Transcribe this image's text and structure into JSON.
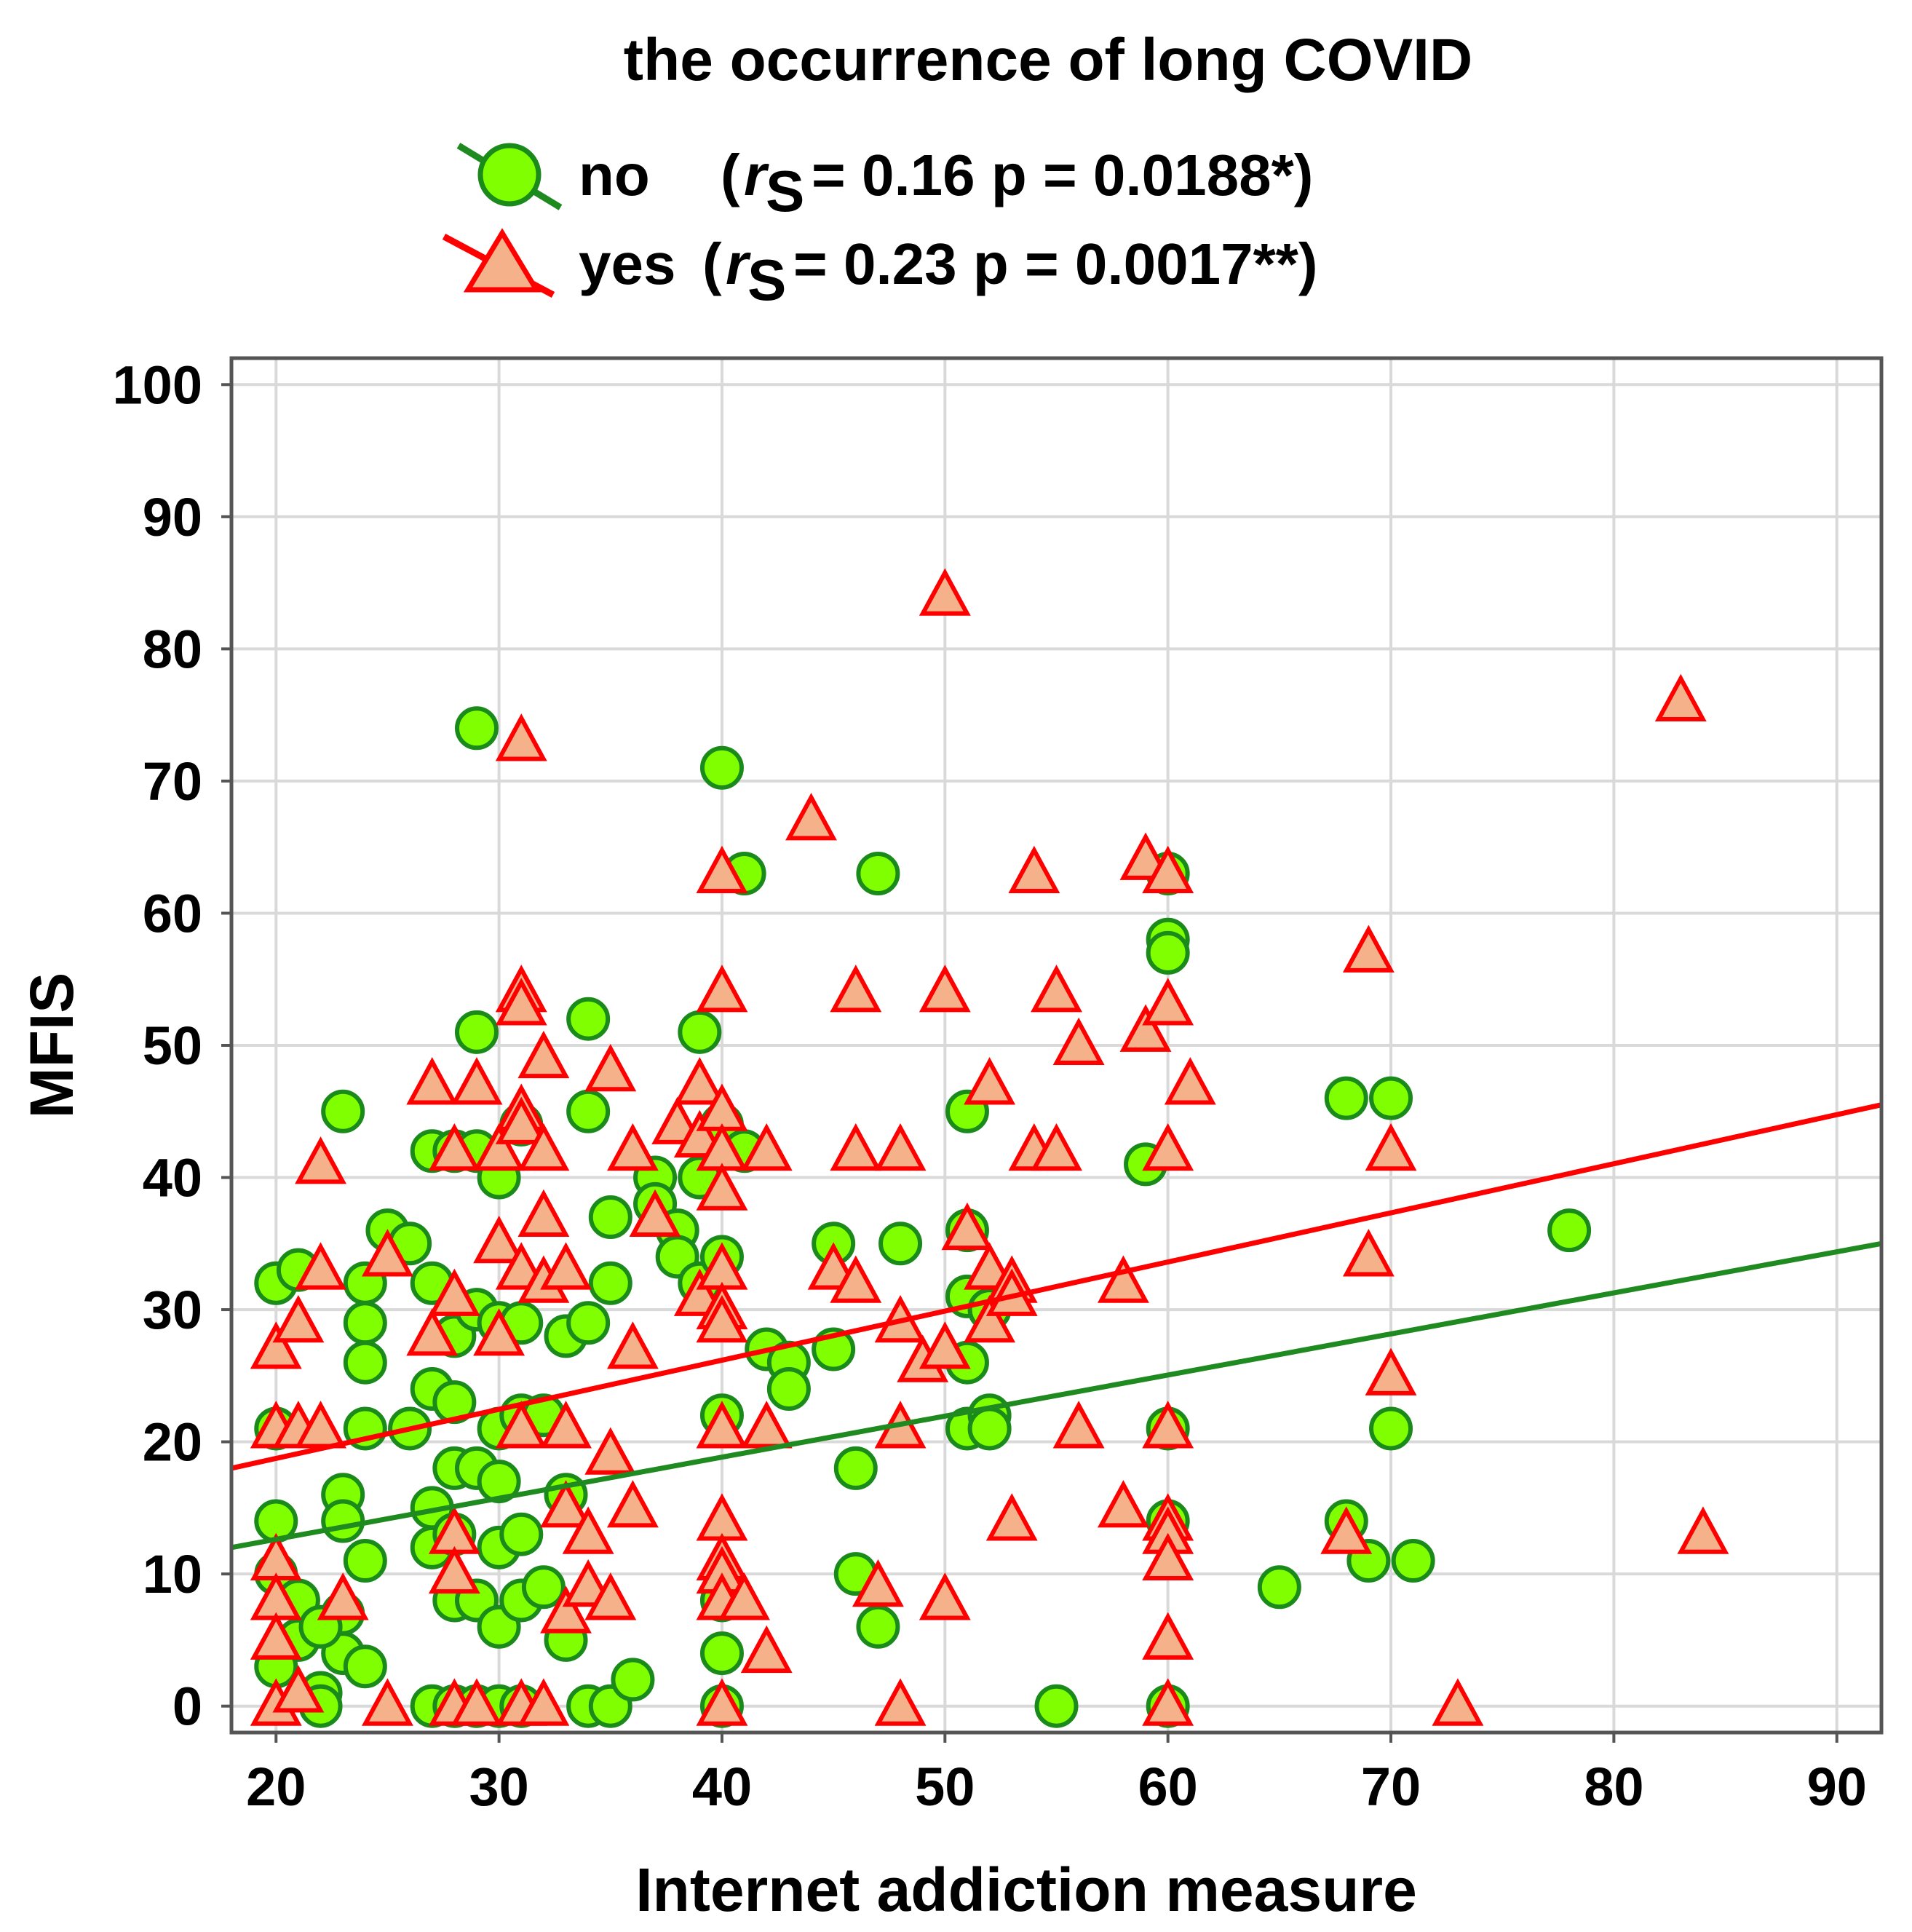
{
  "chart_data": {
    "type": "scatter",
    "title": "the occurrence of long COVID",
    "xlabel": "Internet addiction measure",
    "ylabel": "MFIS",
    "xlim": [
      18,
      92
    ],
    "ylim": [
      -2,
      102
    ],
    "xticks": [
      20,
      30,
      40,
      50,
      60,
      70,
      80,
      90
    ],
    "yticks": [
      0,
      10,
      20,
      30,
      40,
      50,
      60,
      70,
      80,
      90,
      100
    ],
    "grid": true,
    "legend_position": "top",
    "colors": {
      "no_fill": "#7fff00",
      "no_stroke": "#1a8a1a",
      "no_line": "#1f8a1f",
      "yes_fill": "#f4b18a",
      "yes_stroke": "#ff0000",
      "yes_line": "#ff0000",
      "grid": "#d9d9d9"
    },
    "legend": [
      {
        "key": "no",
        "label": "no",
        "stat": "= 0.16  p = 0.0188*)",
        "prefix": "(",
        "r": "r",
        "sub": "S"
      },
      {
        "key": "yes",
        "label": "yes",
        "stat": "= 0.23  p = 0.0017**)",
        "prefix": "(",
        "r": "r",
        "sub": "S"
      }
    ],
    "series": [
      {
        "name": "no",
        "marker": "circle",
        "rs": 0.16,
        "p": "0.0188*",
        "fit": {
          "x": [
            18,
            92
          ],
          "y": [
            12.0,
            35.0
          ]
        },
        "points": [
          [
            20,
            32
          ],
          [
            21,
            33
          ],
          [
            20,
            21
          ],
          [
            20,
            14
          ],
          [
            20,
            10
          ],
          [
            21,
            8
          ],
          [
            21,
            5
          ],
          [
            20,
            3
          ],
          [
            22,
            1
          ],
          [
            22,
            0
          ],
          [
            23,
            7
          ],
          [
            23,
            4
          ],
          [
            22,
            6
          ],
          [
            23,
            45
          ],
          [
            24,
            32
          ],
          [
            24,
            29
          ],
          [
            24,
            26
          ],
          [
            24,
            21
          ],
          [
            23,
            16
          ],
          [
            23,
            14
          ],
          [
            24,
            11
          ],
          [
            24,
            3
          ],
          [
            25,
            36
          ],
          [
            26,
            35
          ],
          [
            26,
            21
          ],
          [
            27,
            42
          ],
          [
            27,
            32
          ],
          [
            27,
            24
          ],
          [
            28,
            23
          ],
          [
            27,
            15
          ],
          [
            27,
            12
          ],
          [
            27,
            0
          ],
          [
            28,
            42
          ],
          [
            28,
            28
          ],
          [
            28,
            18
          ],
          [
            28,
            13
          ],
          [
            28,
            8
          ],
          [
            28,
            0
          ],
          [
            29,
            74
          ],
          [
            29,
            51
          ],
          [
            29,
            42
          ],
          [
            29,
            30
          ],
          [
            29,
            18
          ],
          [
            29,
            8
          ],
          [
            29,
            0
          ],
          [
            30,
            40
          ],
          [
            30,
            29
          ],
          [
            30,
            21
          ],
          [
            30,
            17
          ],
          [
            30,
            12
          ],
          [
            30,
            6
          ],
          [
            30,
            0
          ],
          [
            31,
            44
          ],
          [
            31,
            29
          ],
          [
            31,
            22
          ],
          [
            31,
            13
          ],
          [
            31,
            8
          ],
          [
            31,
            0
          ],
          [
            32,
            22
          ],
          [
            32,
            9
          ],
          [
            33,
            28
          ],
          [
            33,
            16
          ],
          [
            33,
            5
          ],
          [
            34,
            52
          ],
          [
            34,
            45
          ],
          [
            34,
            29
          ],
          [
            34,
            0
          ],
          [
            35,
            37
          ],
          [
            35,
            32
          ],
          [
            35,
            0
          ],
          [
            36,
            2
          ],
          [
            37,
            40
          ],
          [
            37,
            38
          ],
          [
            38,
            36
          ],
          [
            38,
            34
          ],
          [
            39,
            51
          ],
          [
            39,
            40
          ],
          [
            39,
            32
          ],
          [
            40,
            71
          ],
          [
            40,
            44
          ],
          [
            40,
            34
          ],
          [
            40,
            22
          ],
          [
            40,
            8
          ],
          [
            40,
            4
          ],
          [
            40,
            0
          ],
          [
            41,
            63
          ],
          [
            41,
            42
          ],
          [
            42,
            27
          ],
          [
            43,
            26
          ],
          [
            43,
            24
          ],
          [
            45,
            35
          ],
          [
            45,
            27
          ],
          [
            46,
            18
          ],
          [
            46,
            10
          ],
          [
            47,
            63
          ],
          [
            47,
            6
          ],
          [
            48,
            35
          ],
          [
            51,
            45
          ],
          [
            51,
            36
          ],
          [
            51,
            31
          ],
          [
            51,
            21
          ],
          [
            51,
            26
          ],
          [
            52,
            30
          ],
          [
            52,
            22
          ],
          [
            52,
            21
          ],
          [
            55,
            0
          ],
          [
            59,
            41
          ],
          [
            60,
            63
          ],
          [
            60,
            58
          ],
          [
            60,
            57
          ],
          [
            60,
            21
          ],
          [
            60,
            14
          ],
          [
            60,
            0
          ],
          [
            65,
            9
          ],
          [
            68,
            46
          ],
          [
            68,
            14
          ],
          [
            69,
            11
          ],
          [
            70,
            46
          ],
          [
            70,
            21
          ],
          [
            71,
            11
          ],
          [
            78,
            36
          ]
        ]
      },
      {
        "name": "yes",
        "marker": "triangle",
        "rs": 0.23,
        "p": "0.0017**",
        "fit": {
          "x": [
            18,
            92
          ],
          "y": [
            18.0,
            45.5
          ]
        },
        "points": [
          [
            20,
            27
          ],
          [
            20,
            21
          ],
          [
            20,
            11
          ],
          [
            20,
            8
          ],
          [
            20,
            5
          ],
          [
            20,
            0
          ],
          [
            21,
            29
          ],
          [
            21,
            21
          ],
          [
            21,
            1
          ],
          [
            22,
            41
          ],
          [
            22,
            33
          ],
          [
            22,
            21
          ],
          [
            23,
            8
          ],
          [
            25,
            34
          ],
          [
            25,
            0
          ],
          [
            27,
            47
          ],
          [
            27,
            28
          ],
          [
            28,
            42
          ],
          [
            28,
            31
          ],
          [
            28,
            13
          ],
          [
            28,
            10
          ],
          [
            28,
            0
          ],
          [
            29,
            47
          ],
          [
            29,
            0
          ],
          [
            30,
            42
          ],
          [
            30,
            35
          ],
          [
            30,
            28
          ],
          [
            31,
            73
          ],
          [
            31,
            54
          ],
          [
            31,
            53
          ],
          [
            31,
            45
          ],
          [
            31,
            44
          ],
          [
            31,
            33
          ],
          [
            31,
            21
          ],
          [
            31,
            0
          ],
          [
            32,
            49
          ],
          [
            32,
            42
          ],
          [
            32,
            37
          ],
          [
            32,
            32
          ],
          [
            32,
            0
          ],
          [
            33,
            33
          ],
          [
            33,
            21
          ],
          [
            33,
            15
          ],
          [
            33,
            7
          ],
          [
            34,
            13
          ],
          [
            34,
            9
          ],
          [
            35,
            48
          ],
          [
            35,
            19
          ],
          [
            35,
            8
          ],
          [
            36,
            42
          ],
          [
            36,
            27
          ],
          [
            36,
            15
          ],
          [
            37,
            37
          ],
          [
            38,
            44
          ],
          [
            39,
            47
          ],
          [
            39,
            43
          ],
          [
            39,
            31
          ],
          [
            40,
            63
          ],
          [
            40,
            54
          ],
          [
            40,
            45
          ],
          [
            40,
            42
          ],
          [
            40,
            39
          ],
          [
            40,
            33
          ],
          [
            40,
            30
          ],
          [
            40,
            29
          ],
          [
            40,
            21
          ],
          [
            40,
            14
          ],
          [
            40,
            11
          ],
          [
            40,
            10
          ],
          [
            40,
            8
          ],
          [
            40,
            0
          ],
          [
            41,
            8
          ],
          [
            42,
            42
          ],
          [
            42,
            21
          ],
          [
            42,
            4
          ],
          [
            44,
            67
          ],
          [
            45,
            33
          ],
          [
            46,
            54
          ],
          [
            46,
            42
          ],
          [
            46,
            32
          ],
          [
            47,
            9
          ],
          [
            48,
            42
          ],
          [
            48,
            29
          ],
          [
            48,
            21
          ],
          [
            48,
            0
          ],
          [
            49,
            26
          ],
          [
            50,
            84
          ],
          [
            50,
            54
          ],
          [
            50,
            27
          ],
          [
            50,
            8
          ],
          [
            51,
            36
          ],
          [
            52,
            47
          ],
          [
            52,
            33
          ],
          [
            52,
            29
          ],
          [
            53,
            32
          ],
          [
            53,
            31
          ],
          [
            53,
            14
          ],
          [
            54,
            63
          ],
          [
            54,
            42
          ],
          [
            55,
            54
          ],
          [
            55,
            42
          ],
          [
            56,
            50
          ],
          [
            56,
            21
          ],
          [
            58,
            32
          ],
          [
            58,
            15
          ],
          [
            59,
            64
          ],
          [
            59,
            51
          ],
          [
            60,
            63
          ],
          [
            60,
            53
          ],
          [
            60,
            42
          ],
          [
            60,
            21
          ],
          [
            60,
            14
          ],
          [
            60,
            13
          ],
          [
            60,
            11
          ],
          [
            60,
            5
          ],
          [
            60,
            0
          ],
          [
            61,
            47
          ],
          [
            68,
            13
          ],
          [
            69,
            57
          ],
          [
            69,
            34
          ],
          [
            70,
            42
          ],
          [
            70,
            25
          ],
          [
            73,
            0
          ],
          [
            83,
            76
          ],
          [
            84,
            13
          ]
        ]
      }
    ]
  }
}
